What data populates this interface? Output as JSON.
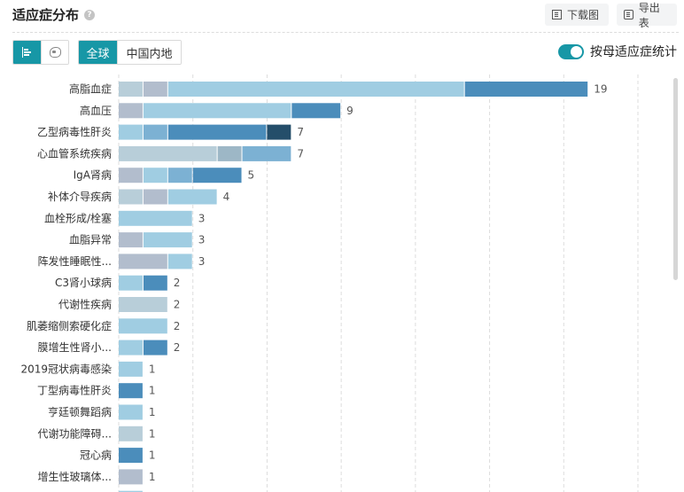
{
  "header": {
    "title": "适应症分布",
    "help_icon": "?",
    "download_label": "下载图",
    "export_label": "导出表"
  },
  "controls": {
    "chart_types": [
      {
        "name": "bar-chart",
        "active": true
      },
      {
        "name": "map",
        "active": false
      }
    ],
    "region_tabs": [
      {
        "label": "全球",
        "active": true
      },
      {
        "label": "中国内地",
        "active": false
      }
    ],
    "toggle": {
      "label": "按母适应症统计",
      "on": true
    }
  },
  "colors": {
    "pale": "#b8ced9",
    "lavender": "#b2bdcd",
    "light": "#a0cde2",
    "mid": "#7cb1d3",
    "blue": "#4b8dbb",
    "navy": "#244e6a",
    "steel": "#9db7c6",
    "accent": "#1797a6",
    "grid": "#dddddd"
  },
  "chart_data": {
    "type": "bar",
    "orientation": "horizontal",
    "stacked": true,
    "title": "适应症分布",
    "xlim": [
      0,
      21
    ],
    "x_grid_step": 3,
    "grid": true,
    "categories": [
      "高脂血症",
      "高血压",
      "乙型病毒性肝炎",
      "心血管系统疾病",
      "IgA肾病",
      "补体介导疾病",
      "血栓形成/栓塞",
      "血脂异常",
      "阵发性睡眠性...",
      "C3肾小球病",
      "代谢性疾病",
      "肌萎缩侧索硬化症",
      "膜增生性肾小...",
      "2019冠状病毒感染",
      "丁型病毒性肝炎",
      "亨廷顿舞蹈病",
      "代谢功能障碍...",
      "冠心病",
      "增生性玻璃体..."
    ],
    "totals": [
      19,
      9,
      7,
      7,
      5,
      4,
      3,
      3,
      3,
      2,
      2,
      2,
      2,
      1,
      1,
      1,
      1,
      1,
      1
    ],
    "segments": [
      [
        [
          "pale",
          1
        ],
        [
          "lavender",
          1
        ],
        [
          "light",
          12
        ],
        [
          "blue",
          5
        ]
      ],
      [
        [
          "lavender",
          1
        ],
        [
          "light",
          6
        ],
        [
          "blue",
          2
        ]
      ],
      [
        [
          "light",
          1
        ],
        [
          "mid",
          1
        ],
        [
          "blue",
          4
        ],
        [
          "navy",
          1
        ]
      ],
      [
        [
          "pale",
          4
        ],
        [
          "steel",
          1
        ],
        [
          "mid",
          2
        ]
      ],
      [
        [
          "lavender",
          1
        ],
        [
          "light",
          1
        ],
        [
          "mid",
          1
        ],
        [
          "blue",
          2
        ]
      ],
      [
        [
          "pale",
          1
        ],
        [
          "lavender",
          1
        ],
        [
          "light",
          2
        ]
      ],
      [
        [
          "light",
          3
        ]
      ],
      [
        [
          "lavender",
          1
        ],
        [
          "light",
          2
        ]
      ],
      [
        [
          "lavender",
          2
        ],
        [
          "light",
          1
        ]
      ],
      [
        [
          "light",
          1
        ],
        [
          "blue",
          1
        ]
      ],
      [
        [
          "pale",
          2
        ]
      ],
      [
        [
          "light",
          2
        ]
      ],
      [
        [
          "light",
          1
        ],
        [
          "blue",
          1
        ]
      ],
      [
        [
          "light",
          1
        ]
      ],
      [
        [
          "blue",
          1
        ]
      ],
      [
        [
          "light",
          1
        ]
      ],
      [
        [
          "pale",
          1
        ]
      ],
      [
        [
          "blue",
          1
        ]
      ],
      [
        [
          "lavender",
          1
        ]
      ]
    ]
  }
}
